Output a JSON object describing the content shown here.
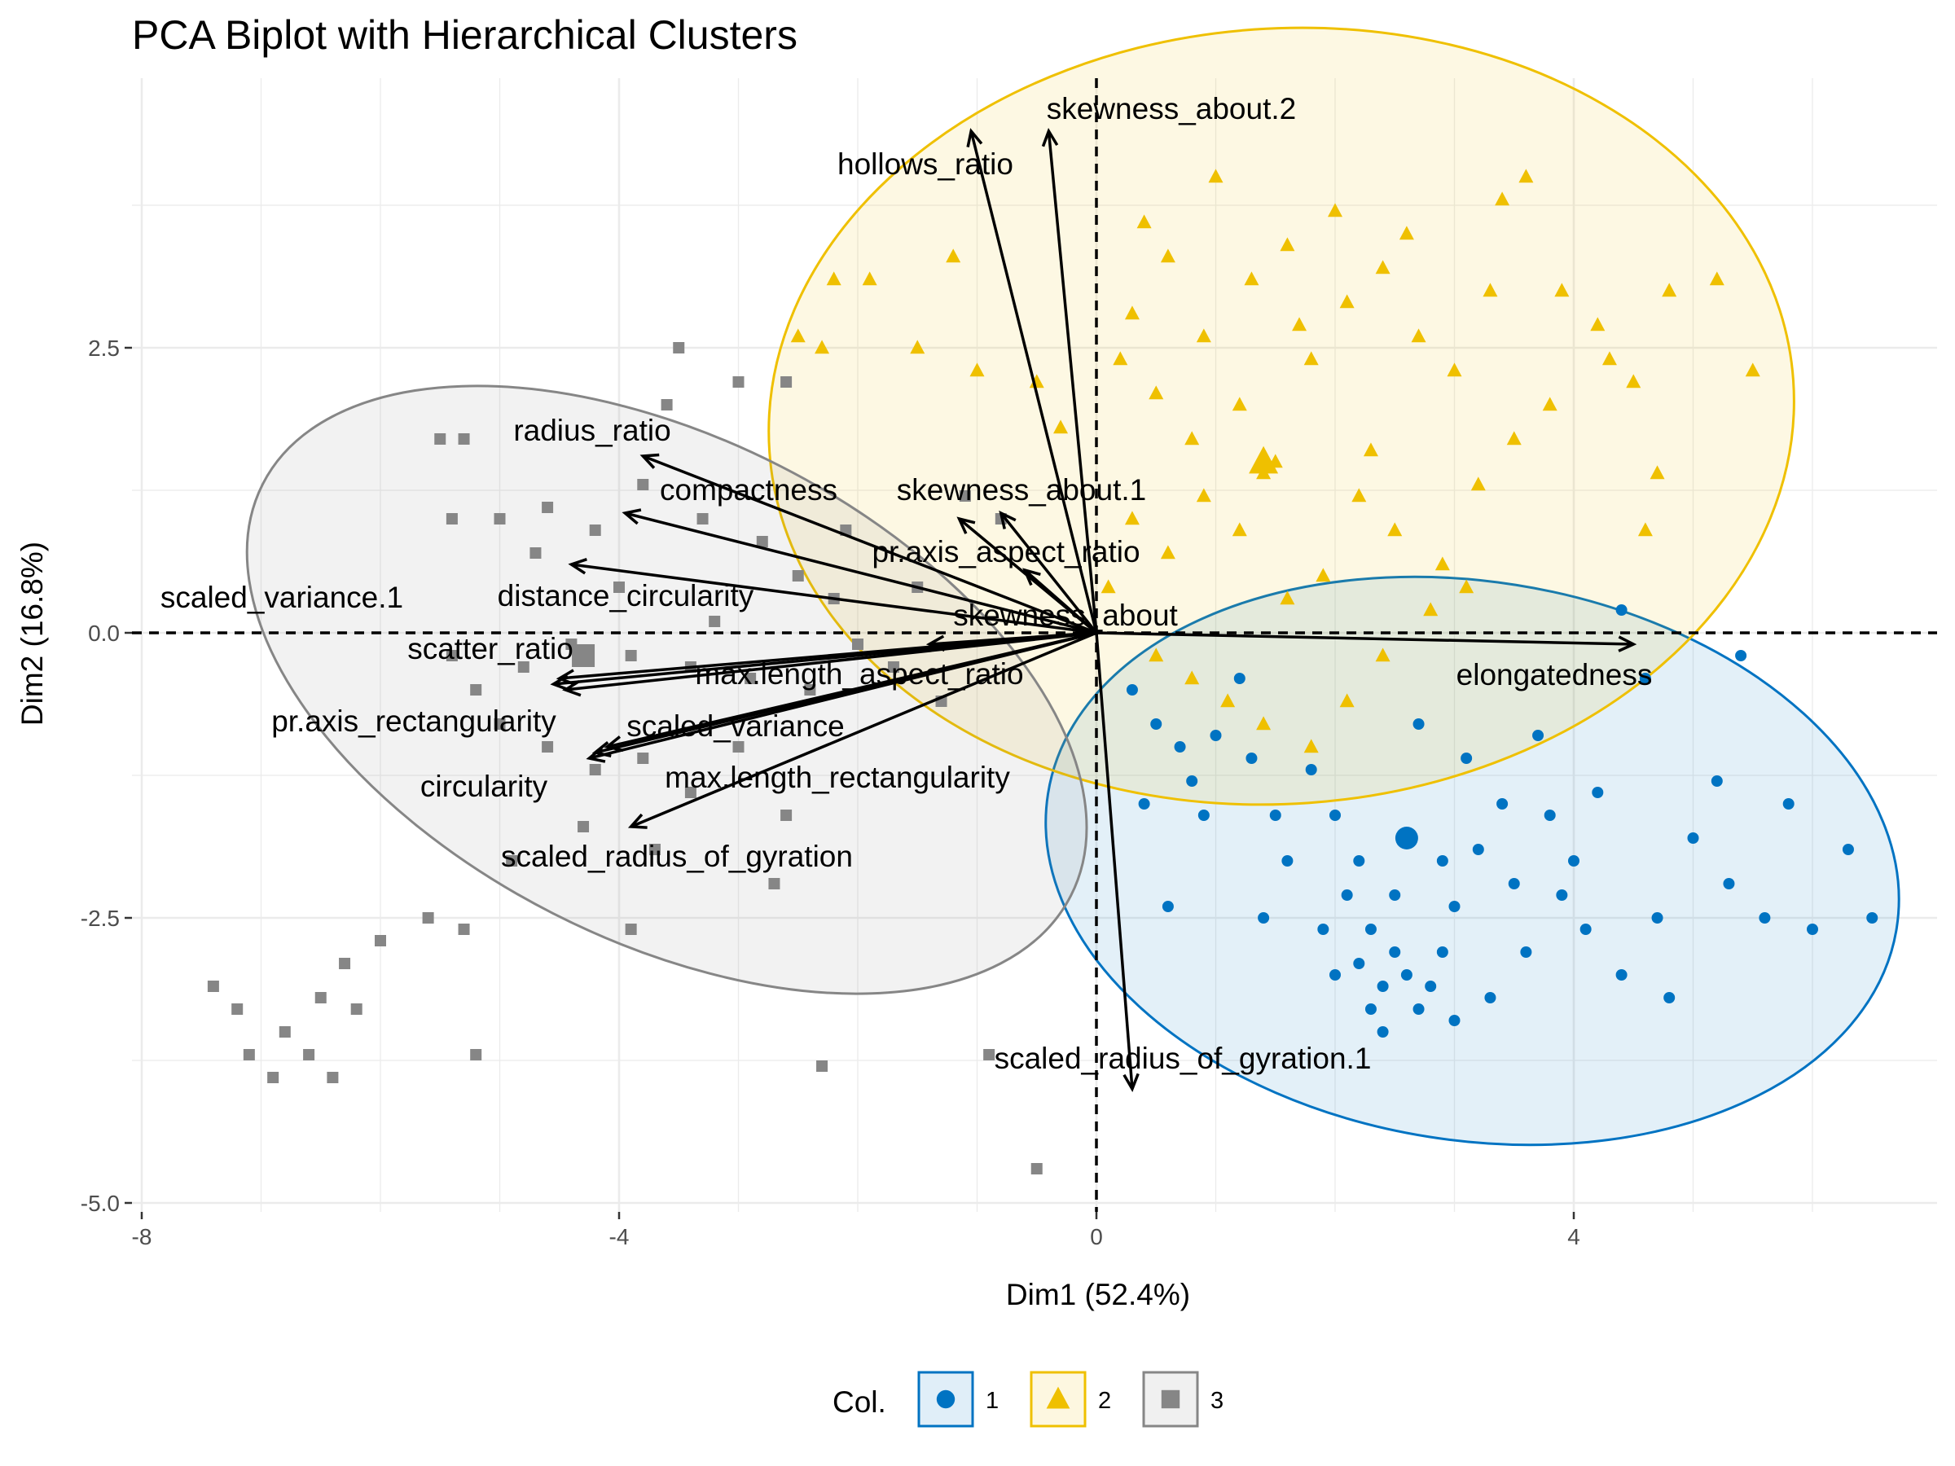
{
  "chart_data": {
    "type": "scatter",
    "title": "PCA Biplot with Hierarchical Clusters",
    "xlabel": "Dim1 (52.4%)",
    "ylabel": "Dim2 (16.8%)",
    "xlim": [
      -8,
      7
    ],
    "ylim": [
      -5.0,
      4.8
    ],
    "x_ticks": [
      -8,
      -4,
      0,
      4
    ],
    "x_tick_labels": [
      "-8",
      "-4",
      "0",
      "4"
    ],
    "y_ticks": [
      -5.0,
      -2.5,
      0.0,
      2.5
    ],
    "y_tick_labels": [
      "-5.0",
      "-2.5",
      "0.0",
      "2.5"
    ],
    "grid": true,
    "reference_lines": {
      "x": 0,
      "y": 0,
      "style": "dashed"
    },
    "legend": {
      "title": "Col.",
      "position": "bottom",
      "entries": [
        {
          "label": "1",
          "color": "#0073C2",
          "shape": "circle"
        },
        {
          "label": "2",
          "color": "#EFC000",
          "shape": "triangle"
        },
        {
          "label": "3",
          "color": "#868686",
          "shape": "square"
        }
      ]
    },
    "clusters": [
      {
        "name": "1",
        "color": "#0073C2",
        "shape": "circle",
        "centroid": [
          2.6,
          -1.8
        ],
        "ellipse": {
          "center": [
            3.15,
            -2.0
          ],
          "rx": 3.6,
          "ry": 2.45,
          "angle_deg": -9
        },
        "points": [
          [
            0.3,
            -0.5
          ],
          [
            0.5,
            -0.8
          ],
          [
            0.7,
            -1.0
          ],
          [
            1.0,
            -0.9
          ],
          [
            0.4,
            -1.5
          ],
          [
            0.9,
            -1.6
          ],
          [
            1.3,
            -1.1
          ],
          [
            1.5,
            -1.6
          ],
          [
            1.8,
            -1.2
          ],
          [
            2.0,
            -1.6
          ],
          [
            1.6,
            -2.0
          ],
          [
            2.2,
            -2.0
          ],
          [
            1.9,
            -2.6
          ],
          [
            2.1,
            -2.3
          ],
          [
            2.3,
            -2.6
          ],
          [
            2.5,
            -2.3
          ],
          [
            2.2,
            -2.9
          ],
          [
            2.4,
            -3.1
          ],
          [
            2.6,
            -3.0
          ],
          [
            2.7,
            -3.3
          ],
          [
            2.8,
            -3.1
          ],
          [
            2.5,
            -2.8
          ],
          [
            2.3,
            -3.3
          ],
          [
            2.0,
            -3.0
          ],
          [
            2.9,
            -2.8
          ],
          [
            3.0,
            -2.4
          ],
          [
            3.2,
            -1.9
          ],
          [
            3.5,
            -2.2
          ],
          [
            3.8,
            -1.6
          ],
          [
            4.2,
            -1.4
          ],
          [
            4.0,
            -2.0
          ],
          [
            3.6,
            -2.8
          ],
          [
            3.3,
            -3.2
          ],
          [
            4.1,
            -2.6
          ],
          [
            4.4,
            -3.0
          ],
          [
            4.7,
            -2.5
          ],
          [
            5.0,
            -1.8
          ],
          [
            5.3,
            -2.2
          ],
          [
            5.6,
            -2.5
          ],
          [
            6.0,
            -2.6
          ],
          [
            6.3,
            -1.9
          ],
          [
            5.8,
            -1.5
          ],
          [
            5.2,
            -1.3
          ],
          [
            4.6,
            -0.4
          ],
          [
            4.4,
            0.2
          ],
          [
            5.4,
            -0.2
          ],
          [
            3.7,
            -0.9
          ],
          [
            3.1,
            -1.1
          ],
          [
            2.7,
            -0.8
          ],
          [
            1.2,
            -0.4
          ],
          [
            0.8,
            -1.3
          ],
          [
            1.4,
            -2.5
          ],
          [
            0.6,
            -2.4
          ],
          [
            3.4,
            -1.5
          ],
          [
            2.9,
            -2.0
          ],
          [
            3.9,
            -2.3
          ],
          [
            6.5,
            -2.5
          ],
          [
            4.8,
            -3.2
          ],
          [
            3.0,
            -3.4
          ],
          [
            2.4,
            -3.5
          ]
        ]
      },
      {
        "name": "2",
        "color": "#EFC000",
        "shape": "triangle",
        "centroid": [
          1.4,
          1.5
        ],
        "ellipse": {
          "center": [
            1.55,
            1.9
          ],
          "rx": 4.3,
          "ry": 3.4,
          "angle_deg": 4
        },
        "points": [
          [
            -2.3,
            2.5
          ],
          [
            -2.5,
            2.6
          ],
          [
            -2.2,
            3.1
          ],
          [
            -1.9,
            3.1
          ],
          [
            -1.2,
            3.3
          ],
          [
            -1.5,
            2.5
          ],
          [
            -1.0,
            2.3
          ],
          [
            -0.5,
            2.2
          ],
          [
            -0.3,
            1.8
          ],
          [
            0.2,
            2.4
          ],
          [
            0.5,
            2.1
          ],
          [
            0.8,
            1.7
          ],
          [
            1.2,
            2.0
          ],
          [
            1.5,
            1.5
          ],
          [
            1.4,
            1.4
          ],
          [
            1.8,
            2.4
          ],
          [
            2.1,
            2.9
          ],
          [
            2.4,
            3.2
          ],
          [
            2.0,
            3.7
          ],
          [
            1.6,
            3.4
          ],
          [
            1.0,
            4.0
          ],
          [
            0.6,
            3.3
          ],
          [
            0.3,
            2.8
          ],
          [
            2.7,
            2.6
          ],
          [
            3.0,
            2.3
          ],
          [
            3.3,
            3.0
          ],
          [
            3.6,
            4.0
          ],
          [
            3.4,
            3.8
          ],
          [
            3.9,
            3.0
          ],
          [
            4.2,
            2.7
          ],
          [
            4.5,
            2.2
          ],
          [
            4.7,
            1.4
          ],
          [
            4.6,
            0.9
          ],
          [
            4.3,
            2.4
          ],
          [
            3.8,
            2.0
          ],
          [
            3.2,
            1.3
          ],
          [
            2.9,
            0.6
          ],
          [
            2.5,
            0.9
          ],
          [
            2.2,
            1.2
          ],
          [
            1.9,
            0.5
          ],
          [
            1.6,
            0.3
          ],
          [
            1.2,
            0.9
          ],
          [
            0.9,
            1.2
          ],
          [
            0.6,
            0.7
          ],
          [
            0.3,
            1.0
          ],
          [
            0.1,
            0.4
          ],
          [
            0.5,
            -0.2
          ],
          [
            0.8,
            -0.4
          ],
          [
            1.1,
            -0.6
          ],
          [
            1.4,
            -0.8
          ],
          [
            1.8,
            -1.0
          ],
          [
            2.1,
            -0.6
          ],
          [
            2.4,
            -0.2
          ],
          [
            2.8,
            0.2
          ],
          [
            3.1,
            0.4
          ],
          [
            1.7,
            2.7
          ],
          [
            0.9,
            2.6
          ],
          [
            2.6,
            3.5
          ],
          [
            4.8,
            3.0
          ],
          [
            5.5,
            2.3
          ],
          [
            5.2,
            3.1
          ],
          [
            3.5,
            1.7
          ],
          [
            1.3,
            3.1
          ],
          [
            0.4,
            3.6
          ],
          [
            2.3,
            1.6
          ]
        ]
      },
      {
        "name": "3",
        "color": "#868686",
        "shape": "square",
        "centroid": [
          -4.3,
          -0.2
        ],
        "ellipse": {
          "center": [
            -3.6,
            -0.5
          ],
          "rx": 3.8,
          "ry": 2.2,
          "angle_deg": -27
        },
        "points": [
          [
            -3.5,
            2.5
          ],
          [
            -3.6,
            2.0
          ],
          [
            -3.0,
            2.2
          ],
          [
            -2.6,
            2.2
          ],
          [
            -5.3,
            1.7
          ],
          [
            -5.5,
            1.7
          ],
          [
            -5.4,
            1.0
          ],
          [
            -5.0,
            1.0
          ],
          [
            -4.6,
            1.1
          ],
          [
            -4.2,
            0.9
          ],
          [
            -3.8,
            1.3
          ],
          [
            -3.3,
            1.0
          ],
          [
            -2.8,
            0.8
          ],
          [
            -2.5,
            0.5
          ],
          [
            -2.2,
            0.3
          ],
          [
            -2.0,
            -0.1
          ],
          [
            -2.4,
            -0.5
          ],
          [
            -2.9,
            -0.4
          ],
          [
            -3.4,
            -0.3
          ],
          [
            -3.9,
            -0.2
          ],
          [
            -4.4,
            -0.1
          ],
          [
            -4.8,
            -0.3
          ],
          [
            -5.2,
            -0.5
          ],
          [
            -5.4,
            -0.2
          ],
          [
            -5.0,
            -0.8
          ],
          [
            -4.6,
            -1.0
          ],
          [
            -4.2,
            -1.2
          ],
          [
            -3.8,
            -1.1
          ],
          [
            -3.4,
            -1.4
          ],
          [
            -3.0,
            -1.0
          ],
          [
            -2.6,
            -1.6
          ],
          [
            -3.7,
            -1.9
          ],
          [
            -4.3,
            -1.7
          ],
          [
            -4.9,
            -2.0
          ],
          [
            -5.6,
            -2.5
          ],
          [
            -5.3,
            -2.6
          ],
          [
            -6.0,
            -2.7
          ],
          [
            -6.3,
            -2.9
          ],
          [
            -6.5,
            -3.2
          ],
          [
            -6.2,
            -3.3
          ],
          [
            -6.8,
            -3.5
          ],
          [
            -7.1,
            -3.7
          ],
          [
            -7.4,
            -3.1
          ],
          [
            -7.2,
            -3.3
          ],
          [
            -6.6,
            -3.7
          ],
          [
            -6.4,
            -3.9
          ],
          [
            -6.9,
            -3.9
          ],
          [
            -5.2,
            -3.7
          ],
          [
            -1.7,
            -0.3
          ],
          [
            -1.3,
            -0.6
          ],
          [
            -1.1,
            1.2
          ],
          [
            -0.8,
            1.0
          ],
          [
            -2.1,
            0.9
          ],
          [
            -3.2,
            0.1
          ],
          [
            -4.0,
            0.4
          ],
          [
            -4.7,
            0.7
          ],
          [
            -2.7,
            -2.2
          ],
          [
            -2.3,
            -3.8
          ],
          [
            -0.5,
            -4.7
          ],
          [
            -0.9,
            -3.7
          ],
          [
            -3.9,
            -2.6
          ],
          [
            -1.5,
            0.4
          ]
        ]
      }
    ],
    "variable_loadings": [
      {
        "name": "hollows_ratio",
        "x": -1.05,
        "y": 4.4
      },
      {
        "name": "skewness_about.2",
        "x": -0.4,
        "y": 4.4
      },
      {
        "name": "radius_ratio",
        "x": -3.8,
        "y": 1.55
      },
      {
        "name": "compactness",
        "x": -3.95,
        "y": 1.05
      },
      {
        "name": "skewness_about.1",
        "x": -0.8,
        "y": 1.05
      },
      {
        "name": "pr.axis_aspect_ratio",
        "x": -1.15,
        "y": 1.0
      },
      {
        "name": "distance_circularity",
        "x": -4.4,
        "y": 0.6
      },
      {
        "name": "skewness_about",
        "x": -0.6,
        "y": 0.55
      },
      {
        "name": "scaled_variance.1",
        "x": -4.55,
        "y": -0.45
      },
      {
        "name": "scatter_ratio",
        "x": -4.5,
        "y": -0.4
      },
      {
        "name": "max.length_aspect_ratio",
        "x": -1.4,
        "y": -0.1
      },
      {
        "name": "pr.axis_rectangularity",
        "x": -4.45,
        "y": -0.5
      },
      {
        "name": "scaled_variance",
        "x": -4.2,
        "y": -1.05
      },
      {
        "name": "circularity",
        "x": -4.25,
        "y": -1.1
      },
      {
        "name": "max.length_rectangularity",
        "x": -4.1,
        "y": -1.0
      },
      {
        "name": "scaled_radius_of_gyration",
        "x": -3.9,
        "y": -1.7
      },
      {
        "name": "scaled_radius_of_gyration.1",
        "x": 0.3,
        "y": -4.0
      },
      {
        "name": "elongatedness",
        "x": 4.5,
        "y": -0.1
      }
    ]
  }
}
